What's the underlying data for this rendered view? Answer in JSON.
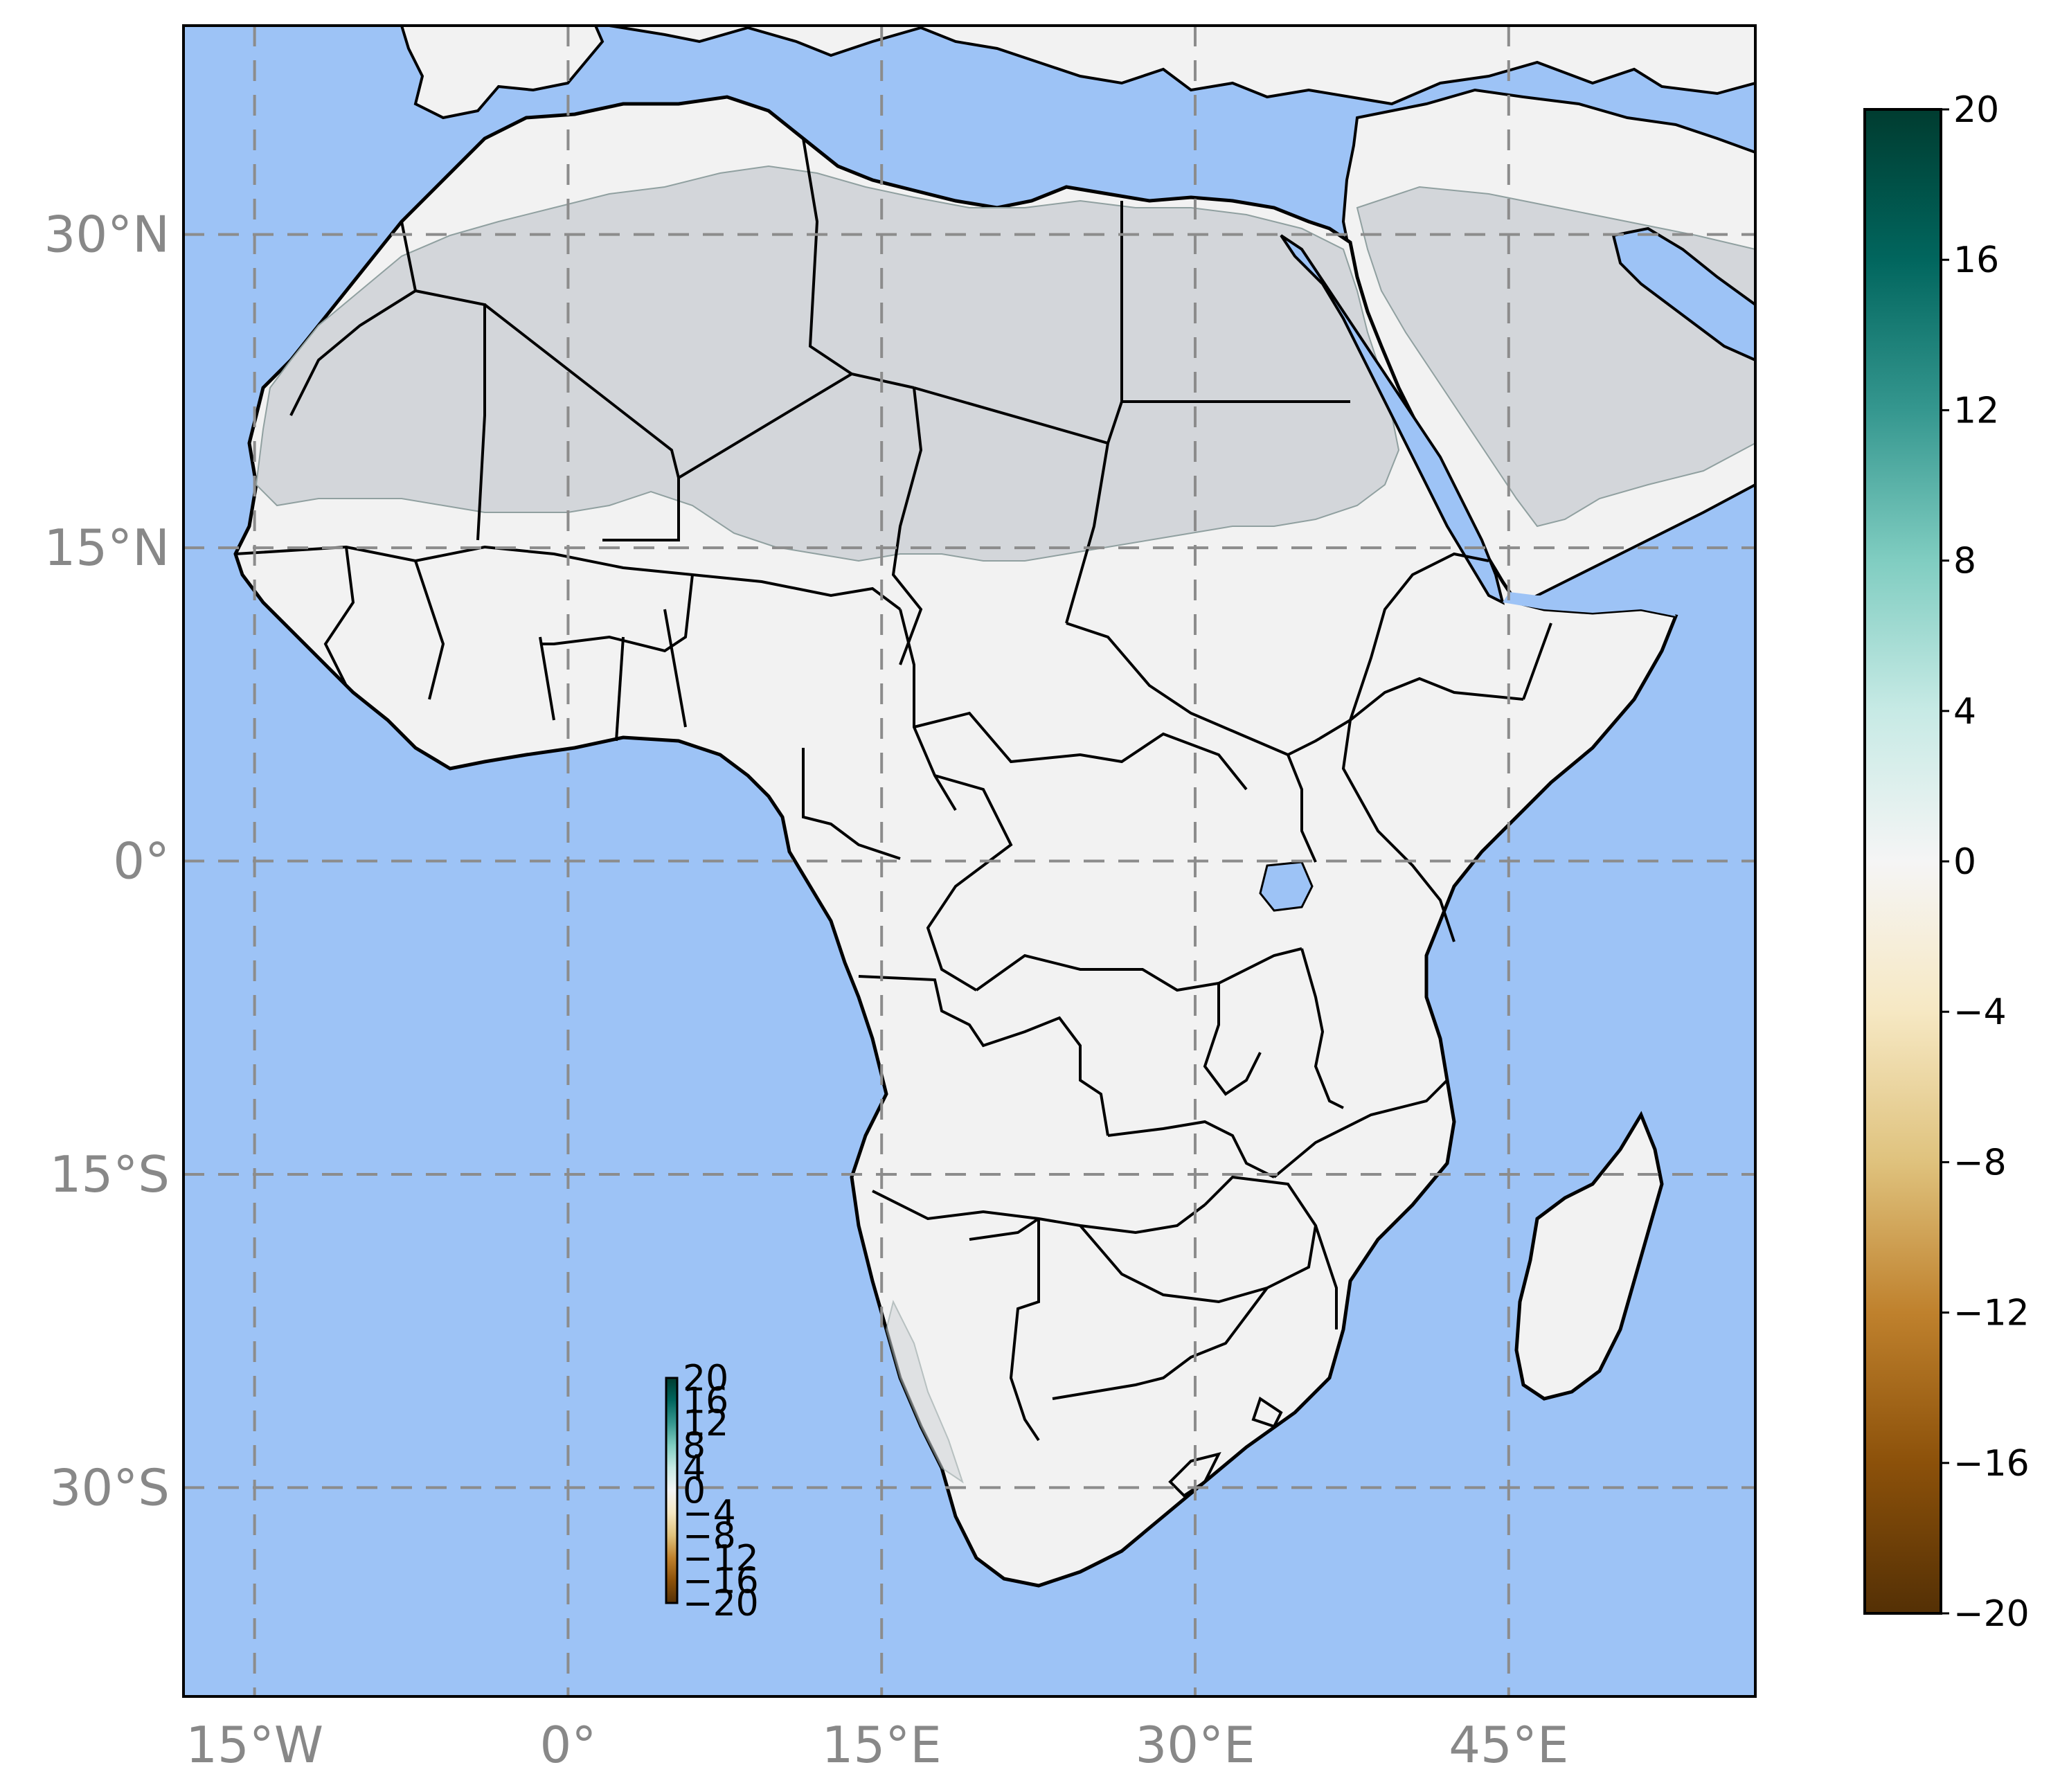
{
  "map": {
    "projection": "PlateCarree",
    "extent": {
      "lon_min": -18.4,
      "lon_max": 56.8,
      "lat_min": -40.0,
      "lat_max": 40.0
    },
    "ocean_color": "#9DC3F6",
    "land_color": "#F2F2F2",
    "arid_color": "#D3D6DA",
    "border_color": "#000000",
    "grid_color": "#8C8C8C",
    "grid_style": "dashed",
    "x_ticks": [
      {
        "value": -15,
        "label": "15°W"
      },
      {
        "value": 0,
        "label": "0°"
      },
      {
        "value": 15,
        "label": "15°E"
      },
      {
        "value": 30,
        "label": "30°E"
      },
      {
        "value": 45,
        "label": "45°E"
      }
    ],
    "y_ticks": [
      {
        "value": 30,
        "label": "30°N"
      },
      {
        "value": 15,
        "label": "15°N"
      },
      {
        "value": 0,
        "label": "0°"
      },
      {
        "value": -15,
        "label": "15°S"
      },
      {
        "value": -30,
        "label": "30°S"
      }
    ]
  },
  "colorbar": {
    "colormap": "BrBG",
    "vmin": -20,
    "vmax": 20,
    "colors": [
      "#543005",
      "#8c510a",
      "#bf812d",
      "#dfc27d",
      "#f6e8c3",
      "#f5f5f5",
      "#c7eae5",
      "#80cdc1",
      "#35978f",
      "#01665e",
      "#003c30"
    ],
    "ticks": [
      {
        "value": 20,
        "label": "20"
      },
      {
        "value": 16,
        "label": "16"
      },
      {
        "value": 12,
        "label": "12"
      },
      {
        "value": 8,
        "label": "8"
      },
      {
        "value": 4,
        "label": "4"
      },
      {
        "value": 0,
        "label": "0"
      },
      {
        "value": -4,
        "label": "−4"
      },
      {
        "value": -8,
        "label": "−8"
      },
      {
        "value": -12,
        "label": "−12"
      },
      {
        "value": -16,
        "label": "−16"
      },
      {
        "value": -20,
        "label": "−20"
      }
    ]
  },
  "mini_colorbar": {
    "ticks": [
      {
        "value": 20,
        "label": "20"
      },
      {
        "value": 16,
        "label": "16"
      },
      {
        "value": 12,
        "label": "12"
      },
      {
        "value": 8,
        "label": "8"
      },
      {
        "value": 4,
        "label": "4"
      },
      {
        "value": 0,
        "label": "0"
      },
      {
        "value": -4,
        "label": "−4"
      },
      {
        "value": -8,
        "label": "−8"
      },
      {
        "value": -12,
        "label": "−12"
      },
      {
        "value": -16,
        "label": "−16"
      },
      {
        "value": -20,
        "label": "−20"
      }
    ]
  }
}
